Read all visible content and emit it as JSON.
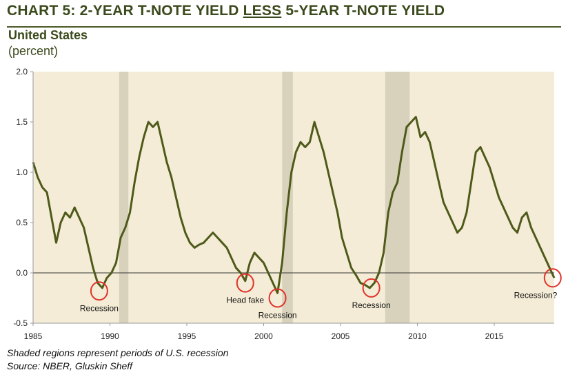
{
  "header": {
    "title_prefix": "CHART 5: 2-YEAR T-NOTE YIELD ",
    "title_emphasis": "LESS",
    "title_suffix": " 5-YEAR T-NOTE YIELD",
    "subtitle": "United States",
    "unit": "(percent)"
  },
  "footnotes": {
    "note": "Shaded regions represent periods of U.S. recession",
    "source": "Source: NBER, Gluskin Sheff"
  },
  "colors": {
    "line": "#4e5a1a",
    "plot_bg": "#f4ecd6",
    "recession": "#d8d2bc",
    "circle": "#e0322a",
    "axis_text": "#222222"
  },
  "chart_data": {
    "type": "line",
    "title": "CHART 5: 2-YEAR T-NOTE YIELD LESS 5-YEAR T-NOTE YIELD",
    "subtitle": "United States",
    "ylabel": "(percent)",
    "xlim": [
      1985,
      2018.9
    ],
    "ylim": [
      -0.5,
      2.0
    ],
    "xticks": [
      1985,
      1990,
      1995,
      2000,
      2005,
      2010,
      2015
    ],
    "yticks": [
      {
        "value": 2.0,
        "label": "2.0"
      },
      {
        "value": 1.5,
        "label": "1.5"
      },
      {
        "value": 1.0,
        "label": "1.0"
      },
      {
        "value": 0.5,
        "label": "0.5"
      },
      {
        "value": 0.0,
        "label": "0.0"
      },
      {
        "value": -0.5,
        "label": "-0.5"
      }
    ],
    "grid": false,
    "zero_line": true,
    "recessions": [
      [
        1990.6,
        1991.2
      ],
      [
        2001.2,
        2001.9
      ],
      [
        2007.9,
        2009.5
      ]
    ],
    "series": [
      {
        "name": "",
        "x": [
          1985.0,
          1985.3,
          1985.6,
          1985.9,
          1986.2,
          1986.5,
          1986.8,
          1987.1,
          1987.4,
          1987.7,
          1988.0,
          1988.3,
          1988.6,
          1988.9,
          1989.2,
          1989.5,
          1989.8,
          1990.1,
          1990.4,
          1990.7,
          1991.0,
          1991.3,
          1991.6,
          1991.9,
          1992.2,
          1992.5,
          1992.8,
          1993.1,
          1993.4,
          1993.7,
          1994.0,
          1994.3,
          1994.6,
          1994.9,
          1995.2,
          1995.5,
          1995.8,
          1996.1,
          1996.4,
          1996.7,
          1997.0,
          1997.3,
          1997.6,
          1997.9,
          1998.2,
          1998.5,
          1998.8,
          1999.1,
          1999.4,
          1999.7,
          2000.0,
          2000.3,
          2000.6,
          2000.9,
          2001.2,
          2001.5,
          2001.8,
          2002.1,
          2002.4,
          2002.7,
          2003.0,
          2003.3,
          2003.6,
          2003.9,
          2004.2,
          2004.5,
          2004.8,
          2005.1,
          2005.4,
          2005.7,
          2006.0,
          2006.3,
          2006.6,
          2006.9,
          2007.2,
          2007.5,
          2007.8,
          2008.1,
          2008.4,
          2008.7,
          2009.0,
          2009.3,
          2009.6,
          2009.9,
          2010.2,
          2010.5,
          2010.8,
          2011.1,
          2011.4,
          2011.7,
          2012.0,
          2012.3,
          2012.6,
          2012.9,
          2013.2,
          2013.5,
          2013.8,
          2014.1,
          2014.4,
          2014.7,
          2015.0,
          2015.3,
          2015.6,
          2015.9,
          2016.2,
          2016.5,
          2016.8,
          2017.1,
          2017.4,
          2017.7,
          2018.0,
          2018.3,
          2018.6,
          2018.9
        ],
        "values": [
          1.1,
          0.95,
          0.85,
          0.8,
          0.55,
          0.3,
          0.5,
          0.6,
          0.55,
          0.65,
          0.55,
          0.45,
          0.25,
          0.05,
          -0.1,
          -0.15,
          -0.05,
          0.0,
          0.1,
          0.35,
          0.45,
          0.6,
          0.9,
          1.15,
          1.35,
          1.5,
          1.45,
          1.5,
          1.3,
          1.1,
          0.95,
          0.75,
          0.55,
          0.4,
          0.3,
          0.25,
          0.28,
          0.3,
          0.35,
          0.4,
          0.35,
          0.3,
          0.25,
          0.15,
          0.05,
          0.0,
          -0.08,
          0.1,
          0.2,
          0.15,
          0.1,
          0.0,
          -0.1,
          -0.2,
          0.1,
          0.6,
          1.0,
          1.2,
          1.3,
          1.25,
          1.3,
          1.5,
          1.35,
          1.2,
          1.0,
          0.8,
          0.6,
          0.35,
          0.2,
          0.05,
          -0.02,
          -0.1,
          -0.12,
          -0.15,
          -0.1,
          0.0,
          0.2,
          0.6,
          0.8,
          0.9,
          1.2,
          1.45,
          1.5,
          1.55,
          1.35,
          1.4,
          1.3,
          1.1,
          0.9,
          0.7,
          0.6,
          0.5,
          0.4,
          0.45,
          0.6,
          0.9,
          1.2,
          1.25,
          1.15,
          1.05,
          0.9,
          0.75,
          0.65,
          0.55,
          0.45,
          0.4,
          0.55,
          0.6,
          0.45,
          0.35,
          0.25,
          0.15,
          0.05,
          -0.05
        ]
      }
    ],
    "annotations": [
      {
        "label": "Recession",
        "x": 1989.3,
        "y": -0.18
      },
      {
        "label": "Head fake",
        "x": 1998.8,
        "y": -0.1
      },
      {
        "label": "Recession",
        "x": 2000.9,
        "y": -0.25
      },
      {
        "label": "Recession",
        "x": 2007.0,
        "y": -0.15
      },
      {
        "label": "Recession?",
        "x": 2018.8,
        "y": -0.05
      }
    ]
  }
}
